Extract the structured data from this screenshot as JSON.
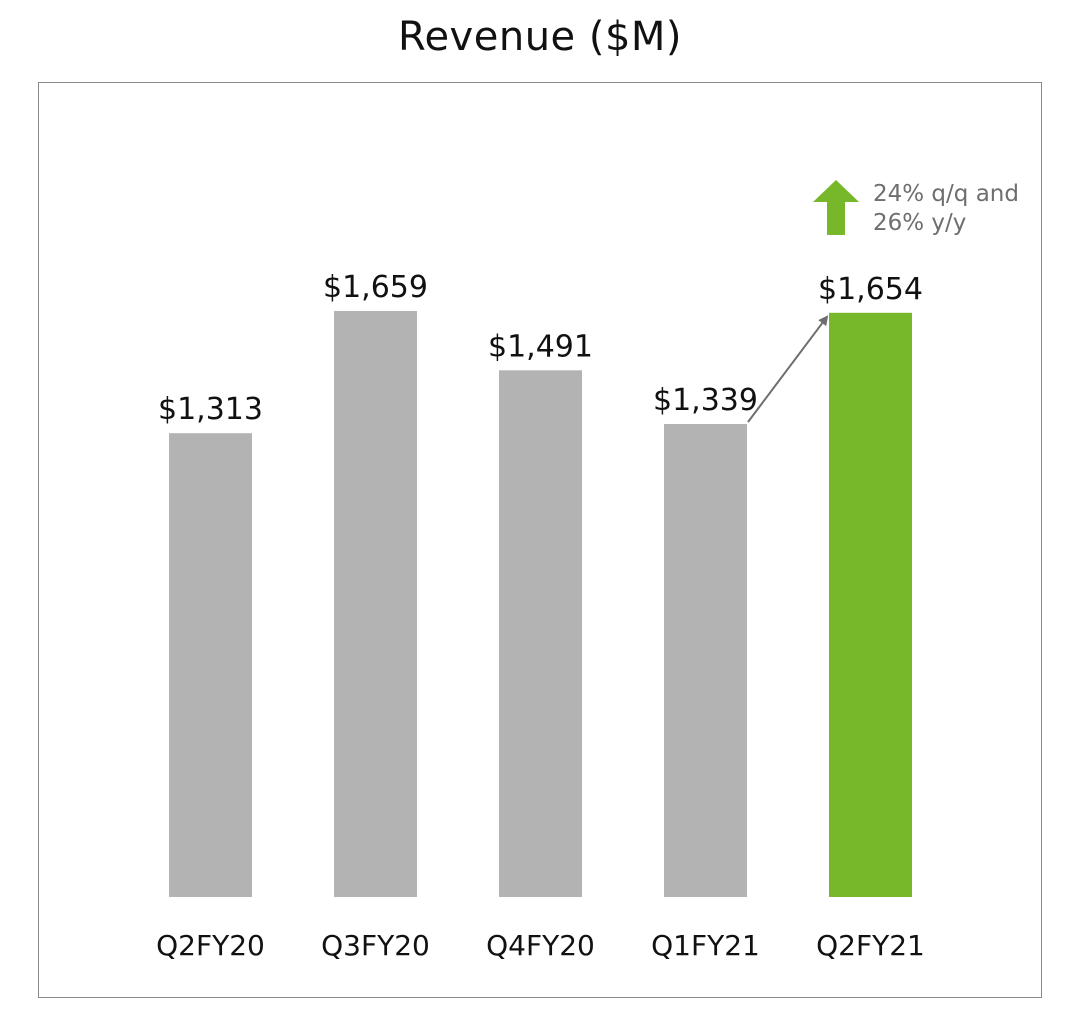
{
  "chart_data": {
    "type": "bar",
    "title": "Revenue ($M)",
    "categories": [
      "Q2FY20",
      "Q3FY20",
      "Q4FY20",
      "Q1FY21",
      "Q2FY21"
    ],
    "values": [
      1313,
      1659,
      1491,
      1339,
      1654
    ],
    "value_labels": [
      "$1,313",
      "$1,659",
      "$1,491",
      "$1,339",
      "$1,654"
    ],
    "highlight_index": 4,
    "xlabel": "",
    "ylabel": "",
    "ylim": [
      0,
      1659
    ],
    "grid": false,
    "legend": "none",
    "annotation": {
      "line1": "24% q/q and",
      "line2": "26% y/y",
      "icon": "up-arrow-icon"
    },
    "colors": {
      "bar": "#b3b3b3",
      "highlight": "#76b82a",
      "text": "#111111",
      "annotation_text": "#6e6e6e",
      "connector": "#6e6e6e",
      "frame": "#8a8a8a"
    }
  }
}
